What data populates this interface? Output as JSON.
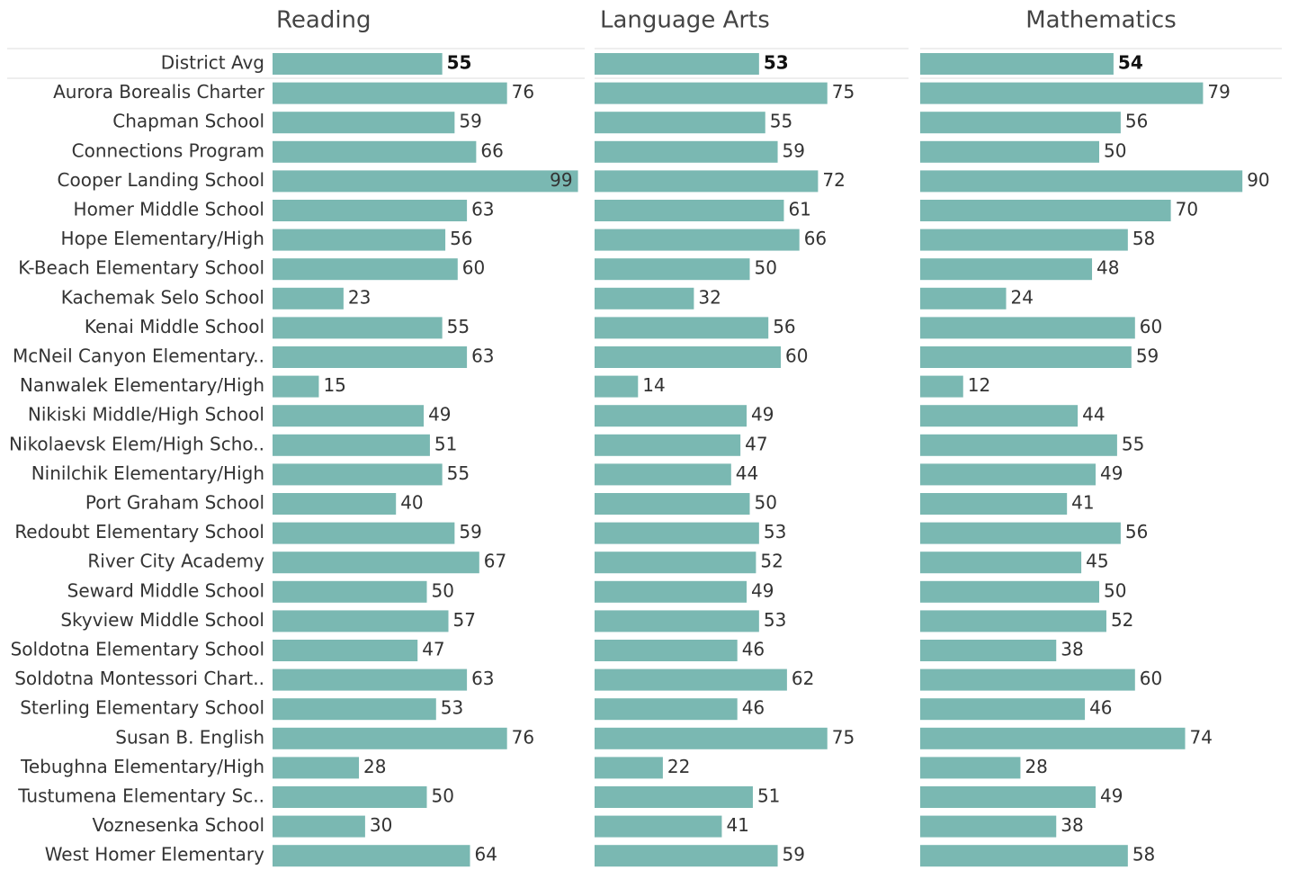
{
  "chart_data": {
    "type": "bar",
    "categories": [
      "District Avg",
      "Aurora Borealis Charter",
      "Chapman School",
      "Connections Program",
      "Cooper Landing School",
      "Homer Middle School",
      "Hope Elementary/High",
      "K-Beach Elementary School",
      "Kachemak Selo School",
      "Kenai Middle School",
      "McNeil Canyon Elementary..",
      "Nanwalek Elementary/High",
      "Nikiski Middle/High School",
      "Nikolaevsk Elem/High Scho..",
      "Ninilchik Elementary/High",
      "Port Graham School",
      "Redoubt Elementary School",
      "River City Academy",
      "Seward Middle School",
      "Skyview Middle School",
      "Soldotna Elementary School",
      "Soldotna Montessori Chart..",
      "Sterling Elementary School",
      "Susan B. English",
      "Tebughna Elementary/High",
      "Tustumena Elementary Sc..",
      "Voznesenka School",
      "West Homer Elementary"
    ],
    "series": [
      {
        "name": "Reading",
        "color": "#7ab8b2",
        "values": [
          55,
          76,
          59,
          66,
          99,
          63,
          56,
          60,
          23,
          55,
          63,
          15,
          49,
          51,
          55,
          40,
          59,
          67,
          50,
          57,
          47,
          63,
          53,
          76,
          28,
          50,
          30,
          64
        ]
      },
      {
        "name": "Language Arts",
        "color": "#7ab8b2",
        "values": [
          53,
          75,
          55,
          59,
          72,
          61,
          66,
          50,
          32,
          56,
          60,
          14,
          49,
          47,
          44,
          50,
          53,
          52,
          49,
          53,
          46,
          62,
          46,
          75,
          22,
          51,
          41,
          59
        ]
      },
      {
        "name": "Mathematics",
        "color": "#7ab8b2",
        "values": [
          54,
          79,
          56,
          50,
          90,
          70,
          58,
          48,
          24,
          60,
          59,
          12,
          44,
          55,
          49,
          41,
          56,
          45,
          50,
          52,
          38,
          60,
          46,
          74,
          28,
          49,
          38,
          58
        ]
      }
    ],
    "xlim": [
      0,
      100
    ]
  }
}
